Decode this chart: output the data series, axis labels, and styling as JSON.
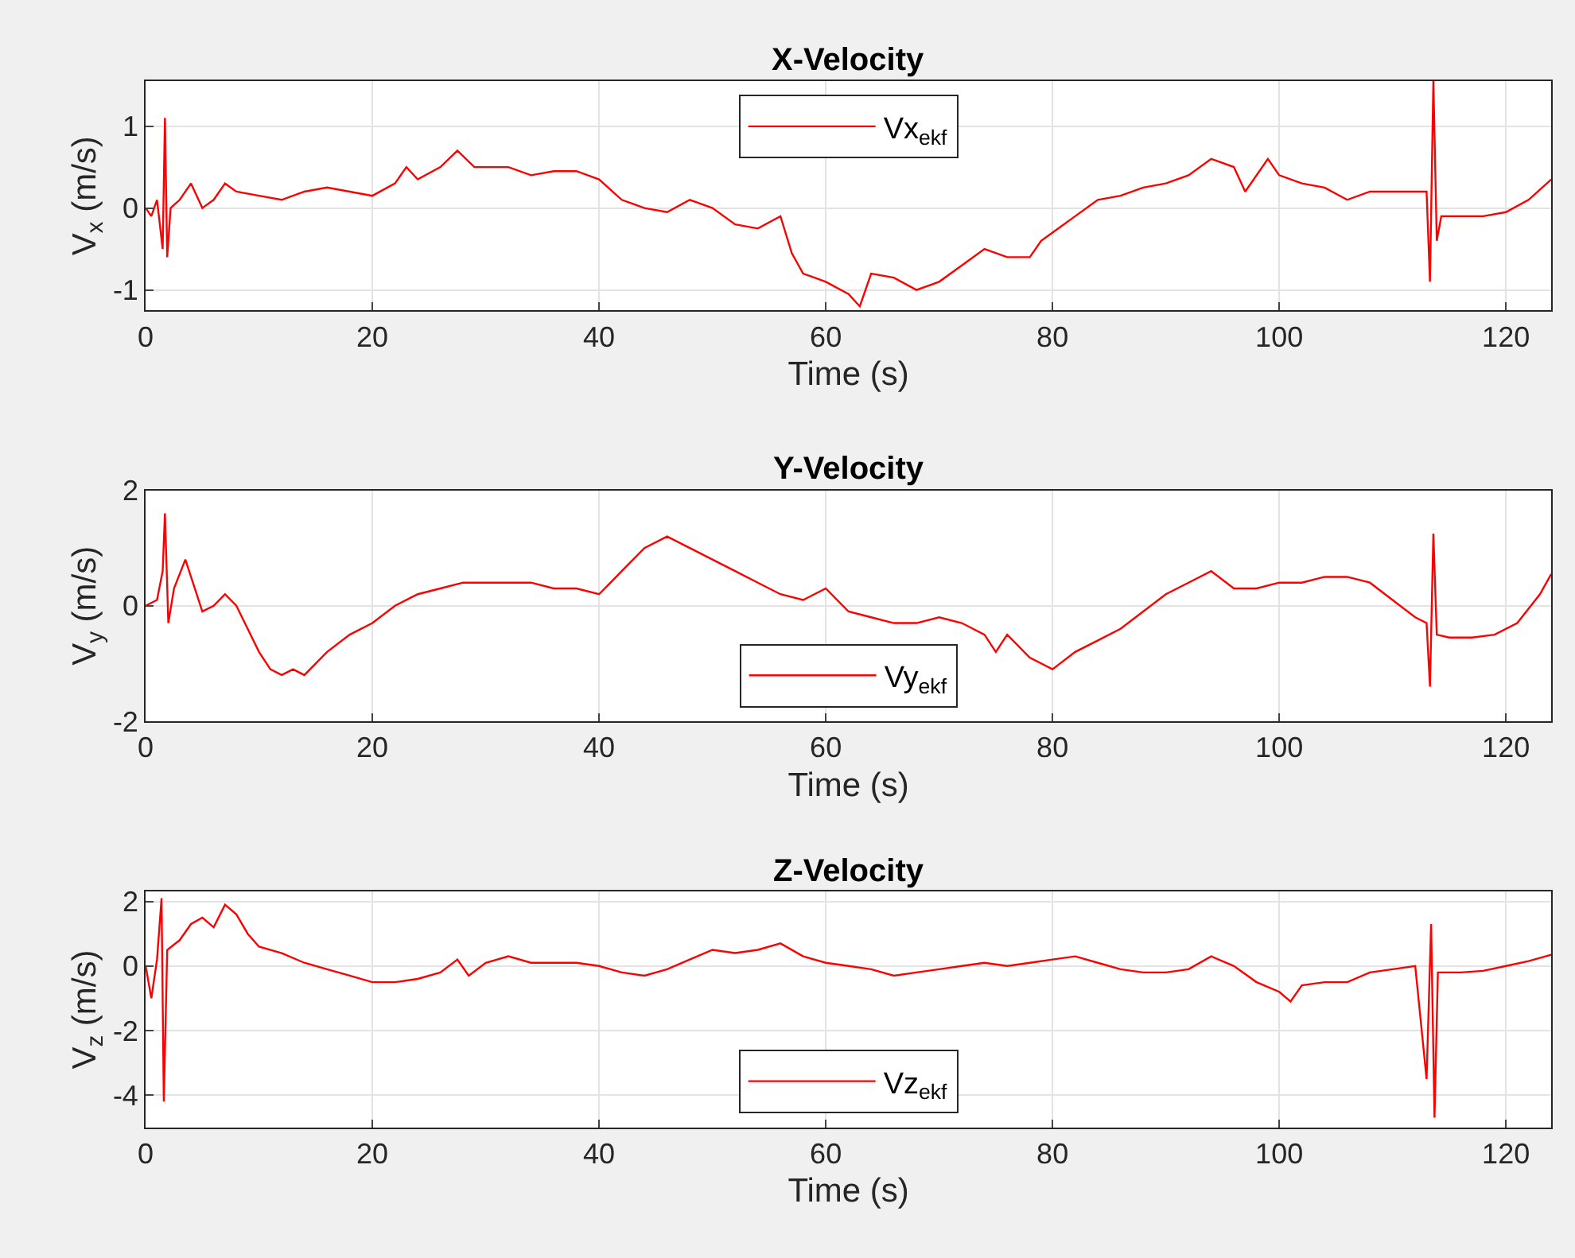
{
  "chart_data": [
    {
      "type": "line",
      "title": "X-Velocity",
      "xlabel": "Time (s)",
      "ylabel": "V$_{x}$ (m/s)",
      "xlim": [
        0,
        124
      ],
      "xticks": [
        0,
        20,
        40,
        60,
        80,
        100,
        120
      ],
      "ylim": [
        -1.25,
        1.55
      ],
      "yticks": [
        -1,
        0,
        1
      ],
      "grid": true,
      "legend": "top",
      "series": [
        {
          "name": "Vx$_{ekf}$",
          "color": "#ff0000",
          "x": [
            0,
            0.5,
            1,
            1.5,
            1.7,
            1.9,
            2.2,
            3,
            4,
            5,
            6,
            7,
            8,
            10,
            12,
            14,
            16,
            18,
            20,
            22,
            23,
            24,
            26,
            27.5,
            29,
            32,
            34,
            36,
            38,
            40,
            42,
            44,
            46,
            48,
            50,
            52,
            54,
            56,
            57,
            58,
            59,
            60,
            62,
            63,
            64,
            66,
            68,
            70,
            72,
            74,
            76,
            78,
            79,
            80,
            82,
            84,
            86,
            88,
            90,
            92,
            94,
            96,
            97,
            99,
            100,
            102,
            104,
            106,
            108,
            110,
            113,
            113.3,
            113.6,
            113.9,
            114.3,
            116,
            118,
            120,
            122,
            124
          ],
          "values": [
            0,
            -0.1,
            0.1,
            -0.5,
            1.1,
            -0.6,
            0,
            0.1,
            0.3,
            0,
            0.1,
            0.3,
            0.2,
            0.15,
            0.1,
            0.2,
            0.25,
            0.2,
            0.15,
            0.3,
            0.5,
            0.35,
            0.5,
            0.7,
            0.5,
            0.5,
            0.4,
            0.45,
            0.45,
            0.35,
            0.1,
            0.0,
            -0.05,
            0.1,
            0.0,
            -0.2,
            -0.25,
            -0.1,
            -0.55,
            -0.8,
            -0.85,
            -0.9,
            -1.05,
            -1.2,
            -0.8,
            -0.85,
            -1.0,
            -0.9,
            -0.7,
            -0.5,
            -0.6,
            -0.6,
            -0.4,
            -0.3,
            -0.1,
            0.1,
            0.15,
            0.25,
            0.3,
            0.4,
            0.6,
            0.5,
            0.2,
            0.6,
            0.4,
            0.3,
            0.25,
            0.1,
            0.2,
            0.2,
            0.2,
            -0.9,
            1.55,
            -0.4,
            -0.1,
            -0.1,
            -0.1,
            -0.05,
            0.1,
            0.35
          ]
        }
      ]
    },
    {
      "type": "line",
      "title": "Y-Velocity",
      "xlabel": "Time (s)",
      "ylabel": "V$_{y}$ (m/s)",
      "xlim": [
        0,
        124
      ],
      "xticks": [
        0,
        20,
        40,
        60,
        80,
        100,
        120
      ],
      "ylim": [
        -2,
        2
      ],
      "yticks": [
        -2,
        0,
        2
      ],
      "grid": true,
      "legend": "bottom",
      "series": [
        {
          "name": "Vy$_{ekf}$",
          "color": "#ff0000",
          "x": [
            0,
            1,
            1.5,
            1.7,
            2,
            2.5,
            3.5,
            4,
            5,
            6,
            7,
            8,
            9,
            10,
            11,
            12,
            13,
            14,
            16,
            18,
            20,
            22,
            24,
            26,
            28,
            30,
            32,
            34,
            36,
            38,
            40,
            42,
            44,
            46,
            48,
            50,
            52,
            54,
            56,
            58,
            60,
            62,
            64,
            66,
            68,
            70,
            72,
            74,
            75,
            76,
            78,
            80,
            82,
            84,
            86,
            88,
            90,
            92,
            94,
            96,
            98,
            100,
            102,
            104,
            106,
            108,
            110,
            112,
            113,
            113.3,
            113.6,
            113.9,
            115,
            117,
            119,
            121,
            123,
            124
          ],
          "values": [
            0,
            0.1,
            0.6,
            1.6,
            -0.3,
            0.3,
            0.8,
            0.5,
            -0.1,
            0.0,
            0.2,
            0,
            -0.4,
            -0.8,
            -1.1,
            -1.2,
            -1.1,
            -1.2,
            -0.8,
            -0.5,
            -0.3,
            0.0,
            0.2,
            0.3,
            0.4,
            0.4,
            0.4,
            0.4,
            0.3,
            0.3,
            0.2,
            0.6,
            1.0,
            1.2,
            1.0,
            0.8,
            0.6,
            0.4,
            0.2,
            0.1,
            0.3,
            -0.1,
            -0.2,
            -0.3,
            -0.3,
            -0.2,
            -0.3,
            -0.5,
            -0.8,
            -0.5,
            -0.9,
            -1.1,
            -0.8,
            -0.6,
            -0.4,
            -0.1,
            0.2,
            0.4,
            0.6,
            0.3,
            0.3,
            0.4,
            0.4,
            0.5,
            0.5,
            0.4,
            0.1,
            -0.2,
            -0.3,
            -1.4,
            1.25,
            -0.5,
            -0.55,
            -0.55,
            -0.5,
            -0.3,
            0.2,
            0.55
          ]
        }
      ]
    },
    {
      "type": "line",
      "title": "Z-Velocity",
      "xlabel": "Time (s)",
      "ylabel": "V$_{z}$ (m/s)",
      "xlim": [
        0,
        124
      ],
      "xticks": [
        0,
        20,
        40,
        60,
        80,
        100,
        120
      ],
      "ylim": [
        -5,
        2.3
      ],
      "yticks": [
        -4,
        -2,
        0,
        2
      ],
      "grid": true,
      "legend": "bottom",
      "series": [
        {
          "name": "Vz$_{ekf}$",
          "color": "#ff0000",
          "x": [
            0,
            0.5,
            1,
            1.4,
            1.6,
            1.9,
            3,
            4,
            5,
            6,
            7,
            8,
            9,
            10,
            12,
            14,
            16,
            18,
            20,
            22,
            24,
            26,
            27.5,
            28.5,
            30,
            32,
            34,
            36,
            38,
            40,
            42,
            44,
            46,
            48,
            50,
            52,
            54,
            56,
            58,
            60,
            62,
            64,
            66,
            68,
            70,
            72,
            74,
            76,
            78,
            80,
            82,
            84,
            86,
            88,
            90,
            92,
            94,
            96,
            98,
            100,
            101,
            102,
            104,
            106,
            108,
            110,
            112,
            113,
            113.4,
            113.7,
            114,
            116,
            118,
            120,
            122,
            124
          ],
          "values": [
            0,
            -1.0,
            0.2,
            2.1,
            -4.2,
            0.5,
            0.8,
            1.3,
            1.5,
            1.2,
            1.9,
            1.6,
            1.0,
            0.6,
            0.4,
            0.1,
            -0.1,
            -0.3,
            -0.5,
            -0.5,
            -0.4,
            -0.2,
            0.2,
            -0.3,
            0.1,
            0.3,
            0.1,
            0.1,
            0.1,
            0.0,
            -0.2,
            -0.3,
            -0.1,
            0.2,
            0.5,
            0.4,
            0.5,
            0.7,
            0.3,
            0.1,
            0.0,
            -0.1,
            -0.3,
            -0.2,
            -0.1,
            0.0,
            0.1,
            0.0,
            0.1,
            0.2,
            0.3,
            0.1,
            -0.1,
            -0.2,
            -0.2,
            -0.1,
            0.3,
            0.0,
            -0.5,
            -0.8,
            -1.1,
            -0.6,
            -0.5,
            -0.5,
            -0.2,
            -0.1,
            0,
            -3.5,
            1.3,
            -4.7,
            -0.2,
            -0.2,
            -0.15,
            0,
            0.15,
            0.35
          ]
        }
      ]
    }
  ]
}
